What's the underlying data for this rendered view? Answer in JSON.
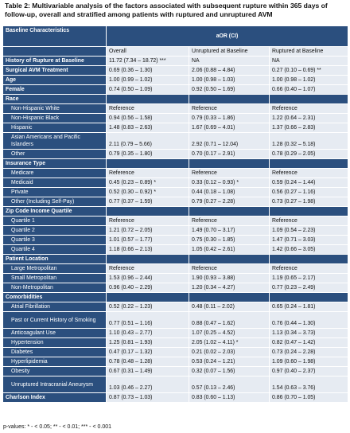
{
  "title": "Table 2: Multivariable analysis of the factors associated with subsequent rupture within 365 days of follow-up, overall and stratified among patients with ruptured and unruptured AVM",
  "header": {
    "col0": "Baseline Characteristics",
    "aor": "aOR (CI)"
  },
  "subheader": [
    "Overall",
    "Unruptured at Baseline",
    "Ruptured at Baseline"
  ],
  "rows": [
    {
      "label": "History of Rupture at Baseline",
      "type": "var",
      "vals": [
        "11.72 (7.34 – 18.72) ***",
        "NA",
        "NA"
      ]
    },
    {
      "label": "Surgical AVM Treatment",
      "type": "var",
      "vals": [
        "0.69 (0.36 – 1.30)",
        "2.06 (0.88 – 4.84)",
        "0.27 (0.10 – 0.69) **"
      ]
    },
    {
      "label": "Age",
      "type": "var",
      "vals": [
        "1.00 (0.99 – 1.02)",
        "1.00 (0.98 – 1.03)",
        "1.00 (0.98 – 1.02)"
      ]
    },
    {
      "label": "Female",
      "type": "var",
      "vals": [
        "0.74 (0.50 – 1.09)",
        "0.92 (0.50 – 1.69)",
        "0.66 (0.40 – 1.07)"
      ]
    },
    {
      "label": "Race",
      "type": "section",
      "vals": [
        "",
        "",
        ""
      ]
    },
    {
      "label": "Non-Hispanic White",
      "type": "sub",
      "vals": [
        "Reference",
        "Reference",
        "Reference"
      ]
    },
    {
      "label": "Non-Hispanic Black",
      "type": "sub",
      "vals": [
        "0.94 (0.56 – 1.58)",
        "0.79 (0.33 – 1.86)",
        "1.22 (0.64 – 2.31)"
      ]
    },
    {
      "label": "Hispanic",
      "type": "sub",
      "vals": [
        "1.48 (0.83 – 2.63)",
        "1.67 (0.69 – 4.01)",
        "1.37 (0.66 – 2.83)"
      ]
    },
    {
      "label": "Asian Americans and Pacific Islanders",
      "type": "sub2",
      "vals": [
        "2.11 (0.79 – 5.66)",
        "2.92 (0.71 – 12.04)",
        "1.28 (0.32 – 5.18)"
      ]
    },
    {
      "label": "Other",
      "type": "sub",
      "vals": [
        "0.79 (0.35 – 1.80)",
        "0.70 (0.17 – 2.91)",
        "0.78 (0.29 – 2.05)"
      ]
    },
    {
      "label": "Insurance Type",
      "type": "section",
      "vals": [
        "",
        "",
        ""
      ]
    },
    {
      "label": "Medicare",
      "type": "sub",
      "vals": [
        "Reference",
        "Reference",
        "Reference"
      ]
    },
    {
      "label": "Medicaid",
      "type": "sub",
      "vals": [
        "0.45 (0.23 – 0.89) *",
        "0.33 (0.12 – 0.93) *",
        "0.59 (0.24 – 1.44)"
      ]
    },
    {
      "label": "Private",
      "type": "sub",
      "vals": [
        "0.52 (0.30 – 0.92) *",
        "0.44 (0.18 – 1.08)",
        "0.56 (0.27 – 1.16)"
      ]
    },
    {
      "label": "Other (Including Self-Pay)",
      "type": "sub",
      "vals": [
        "0.77 (0.37 – 1.59)",
        "0.79 (0.27 – 2.28)",
        "0.73 (0.27 – 1.98)"
      ]
    },
    {
      "label": "Zip Code Income Quartile",
      "type": "section",
      "vals": [
        "",
        "",
        ""
      ]
    },
    {
      "label": "Quartile 1",
      "type": "sub",
      "vals": [
        "Reference",
        "Reference",
        "Reference"
      ]
    },
    {
      "label": "Quartile 2",
      "type": "sub",
      "vals": [
        "1.21 (0.72 – 2.05)",
        "1.49 (0.70 – 3.17)",
        "1.09 (0.54 – 2.23)"
      ]
    },
    {
      "label": "Quartile 3",
      "type": "sub",
      "vals": [
        "1.01 (0.57 – 1.77)",
        "0.75 (0.30 – 1.85)",
        "1.47 (0.71 – 3.03)"
      ]
    },
    {
      "label": "Quartile 4",
      "type": "sub",
      "vals": [
        "1.18 (0.66 – 2.13)",
        "1.05 (0.42 – 2.61)",
        "1.42 (0.66 – 3.05)"
      ]
    },
    {
      "label": "Patient Location",
      "type": "section",
      "vals": [
        "",
        "",
        ""
      ]
    },
    {
      "label": "Large Metropolitan",
      "type": "sub",
      "vals": [
        "Reference",
        "Reference",
        "Reference"
      ]
    },
    {
      "label": "Small Metropolitan",
      "type": "sub",
      "vals": [
        "1.53 (0.96 – 2.44)",
        "1.90 (0.93 – 3.88)",
        "1.19 (0.65 – 2.17)"
      ]
    },
    {
      "label": "Non-Metropolitan",
      "type": "sub",
      "vals": [
        "0.96 (0.40 – 2.29)",
        "1.20 (0.34 – 4.27)",
        "0.77 (0.23 – 2.49)"
      ]
    },
    {
      "label": "Comorbidities",
      "type": "section",
      "vals": [
        "",
        "",
        ""
      ]
    },
    {
      "label": "Atrial Fibrillation",
      "type": "sub",
      "vals": [
        "0.52 (0.22 – 1.23)",
        "0.48 (0.11 – 2.02)",
        "0.65 (0.24 – 1.81)"
      ]
    },
    {
      "label": "Past or Current History of Smoking",
      "type": "sub2",
      "vals": [
        "0.77 (0.51 – 1.16)",
        "0.88 (0.47 – 1.62)",
        "0.76 (0.44 – 1.30)"
      ]
    },
    {
      "label": "Anticoagulant Use",
      "type": "sub",
      "vals": [
        "1.10 (0.43 – 2.77)",
        "1.07 (0.25 – 4.52)",
        "1.13 (0.34 – 3.73)"
      ]
    },
    {
      "label": "Hypertension",
      "type": "sub",
      "vals": [
        "1.25 (0.81 – 1.93)",
        "2.05 (1.02 – 4.11) *",
        "0.82 (0.47 – 1.42)"
      ]
    },
    {
      "label": "Diabetes",
      "type": "sub",
      "vals": [
        "0.47 (0.17 – 1.32)",
        "0.21 (0.02 – 2.03)",
        "0.73 (0.24 – 2.28)"
      ]
    },
    {
      "label": "Hyperlipidemia",
      "type": "sub",
      "vals": [
        "0.78 (0.48 – 1.28)",
        "0.53 (0.24 – 1.21)",
        "1.09 (0.60 – 1.98)"
      ]
    },
    {
      "label": "Obesity",
      "type": "sub",
      "vals": [
        "0.67 (0.31 – 1.49)",
        "0.32 (0.07 – 1.56)",
        "0.97 (0.40 – 2.37)"
      ]
    },
    {
      "label": "Unruptured Intracranial Aneurysm",
      "type": "sub2",
      "vals": [
        "1.03 (0.46 – 2.27)",
        "0.57 (0.13 – 2.46)",
        "1.54 (0.63 – 3.76)"
      ]
    },
    {
      "label": "Charlson Index",
      "type": "var",
      "vals": [
        "0.87 (0.73 – 1.03)",
        "0.83 (0.60 – 1.13)",
        "0.86 (0.70 – 1.05)"
      ]
    }
  ],
  "footer": "p-values: * - < 0.05; ** - < 0.01; *** - < 0.001"
}
